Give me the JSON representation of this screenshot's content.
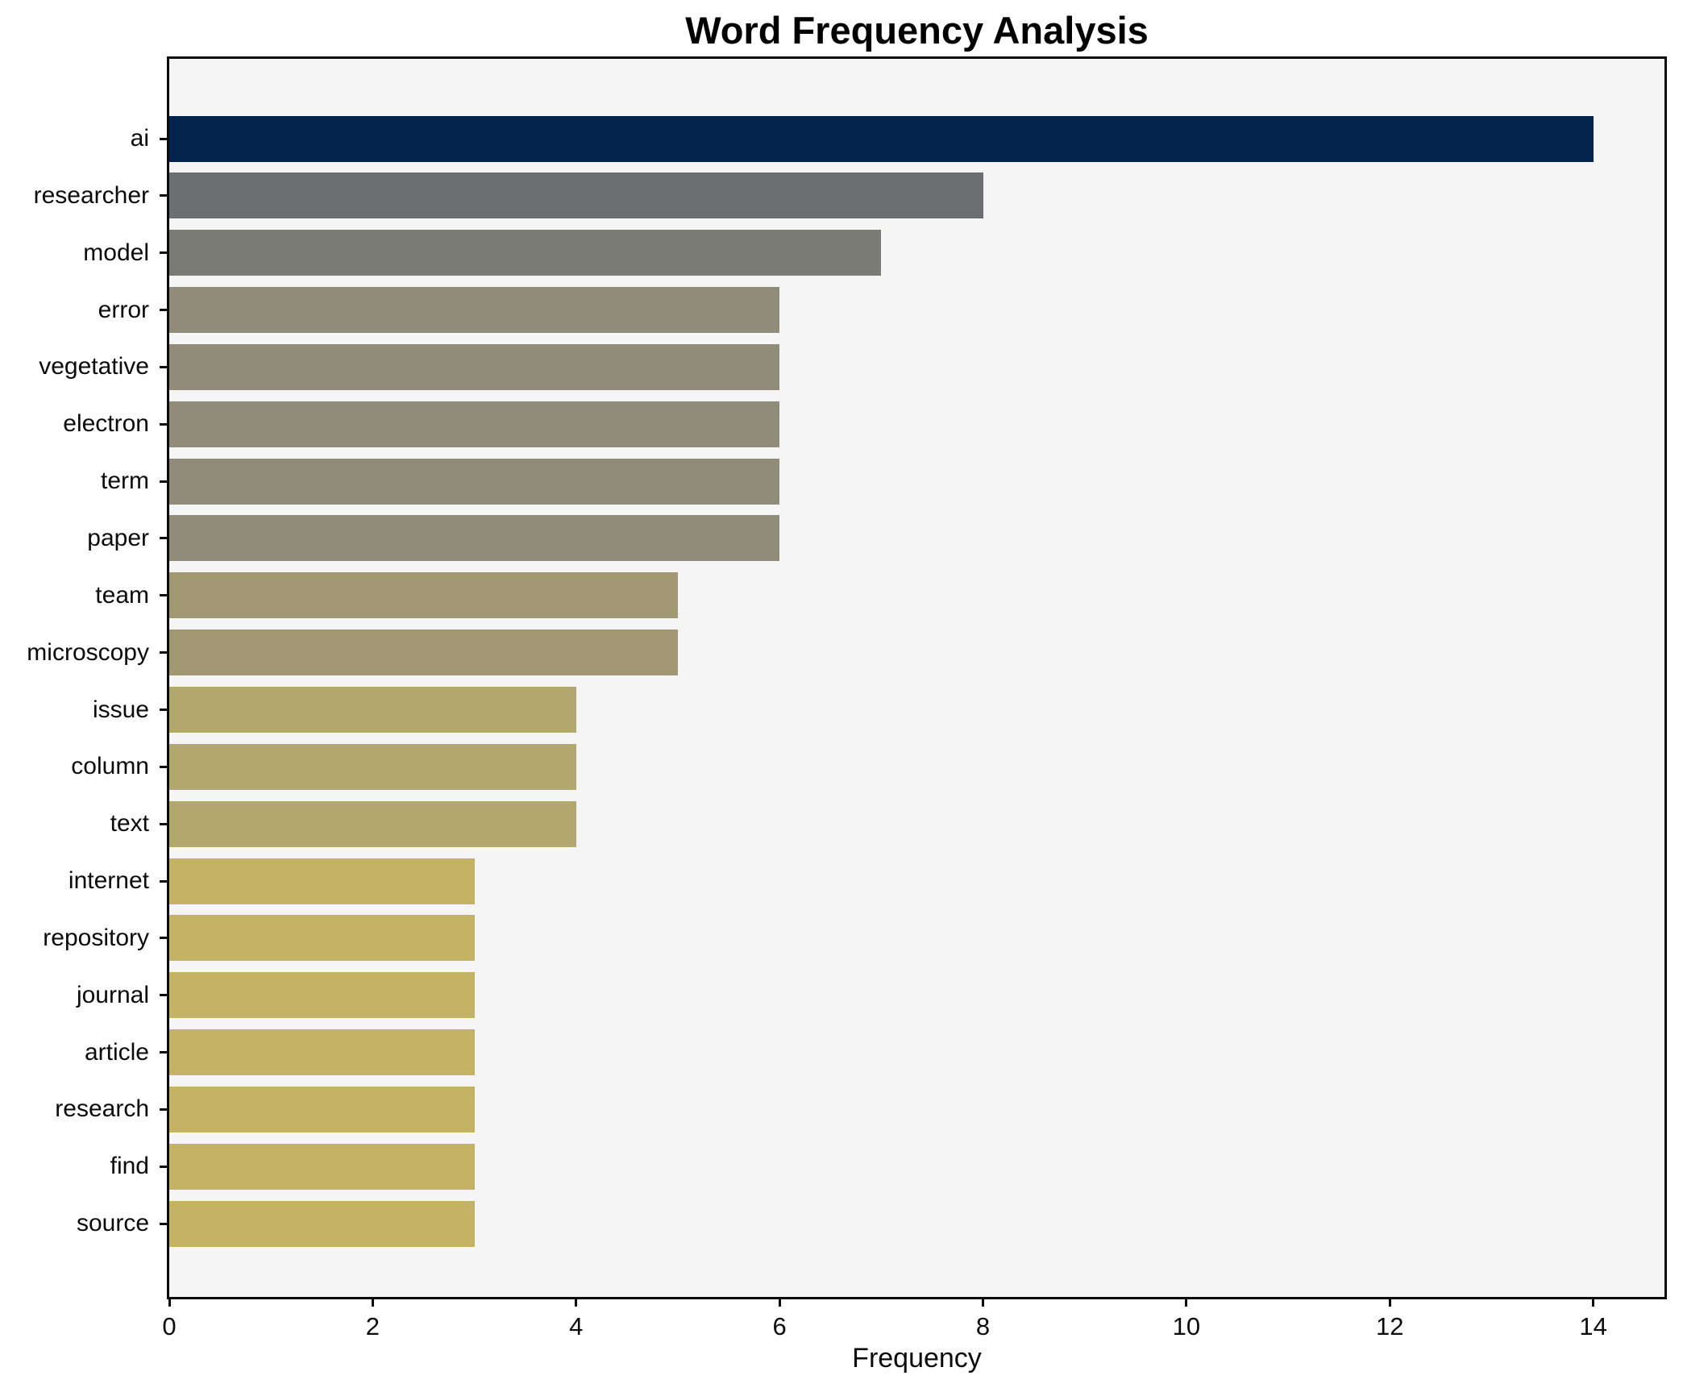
{
  "figure": {
    "background": "#ffffff",
    "plot_background": "#f5f5f6",
    "spine_color": "#0b0b0b",
    "text_color": "#000000"
  },
  "chart_data": {
    "type": "bar",
    "orientation": "horizontal",
    "title": "Word Frequency Analysis",
    "xlabel": "Frequency",
    "ylabel": "",
    "categories": [
      "ai",
      "researcher",
      "model",
      "error",
      "vegetative",
      "electron",
      "term",
      "paper",
      "team",
      "microscopy",
      "issue",
      "column",
      "text",
      "internet",
      "repository",
      "journal",
      "article",
      "research",
      "find",
      "source"
    ],
    "values": [
      14,
      8,
      7,
      6,
      6,
      6,
      6,
      6,
      5,
      5,
      4,
      4,
      4,
      3,
      3,
      3,
      3,
      3,
      3,
      3
    ],
    "bar_colors": [
      "#02234c",
      "#6c6e72",
      "#7b7b75",
      "#908c79",
      "#908c79",
      "#908c79",
      "#908c79",
      "#908c79",
      "#a19873",
      "#a19873",
      "#b2a86e",
      "#b2a86e",
      "#b2a86e",
      "#c4b364",
      "#c4b364",
      "#c4b364",
      "#c4b364",
      "#c4b364",
      "#c4b364",
      "#c4b364"
    ],
    "xlim": [
      0,
      14.7
    ],
    "xticks": [
      0,
      2,
      4,
      6,
      8,
      10,
      12,
      14
    ],
    "grid": false,
    "legend": null
  }
}
